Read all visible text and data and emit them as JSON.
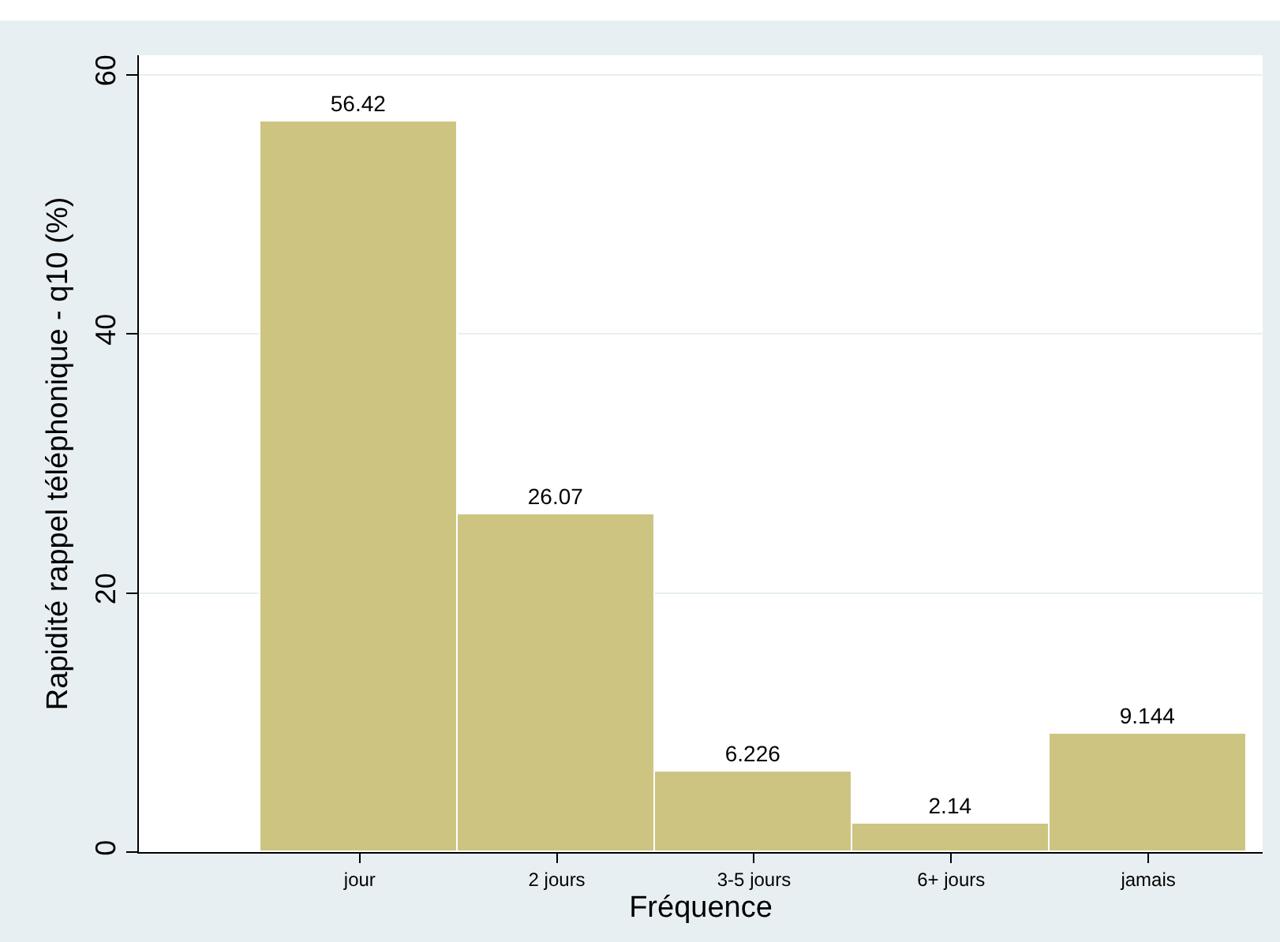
{
  "chart_data": {
    "type": "bar",
    "xlabel": "Fréquence",
    "ylabel": "Rapidité rappel téléphonique - q10 (%)",
    "categories": [
      "jour",
      "2 jours",
      "3-5 jours",
      "6+ jours",
      "jamais"
    ],
    "values": [
      56.42,
      26.07,
      6.226,
      2.14,
      9.144
    ],
    "color": "#cdc482",
    "ylim": [
      0,
      61.5
    ],
    "yticks": [
      0,
      20,
      40,
      60
    ],
    "grid": "y",
    "data_labels": true,
    "legend": false
  }
}
